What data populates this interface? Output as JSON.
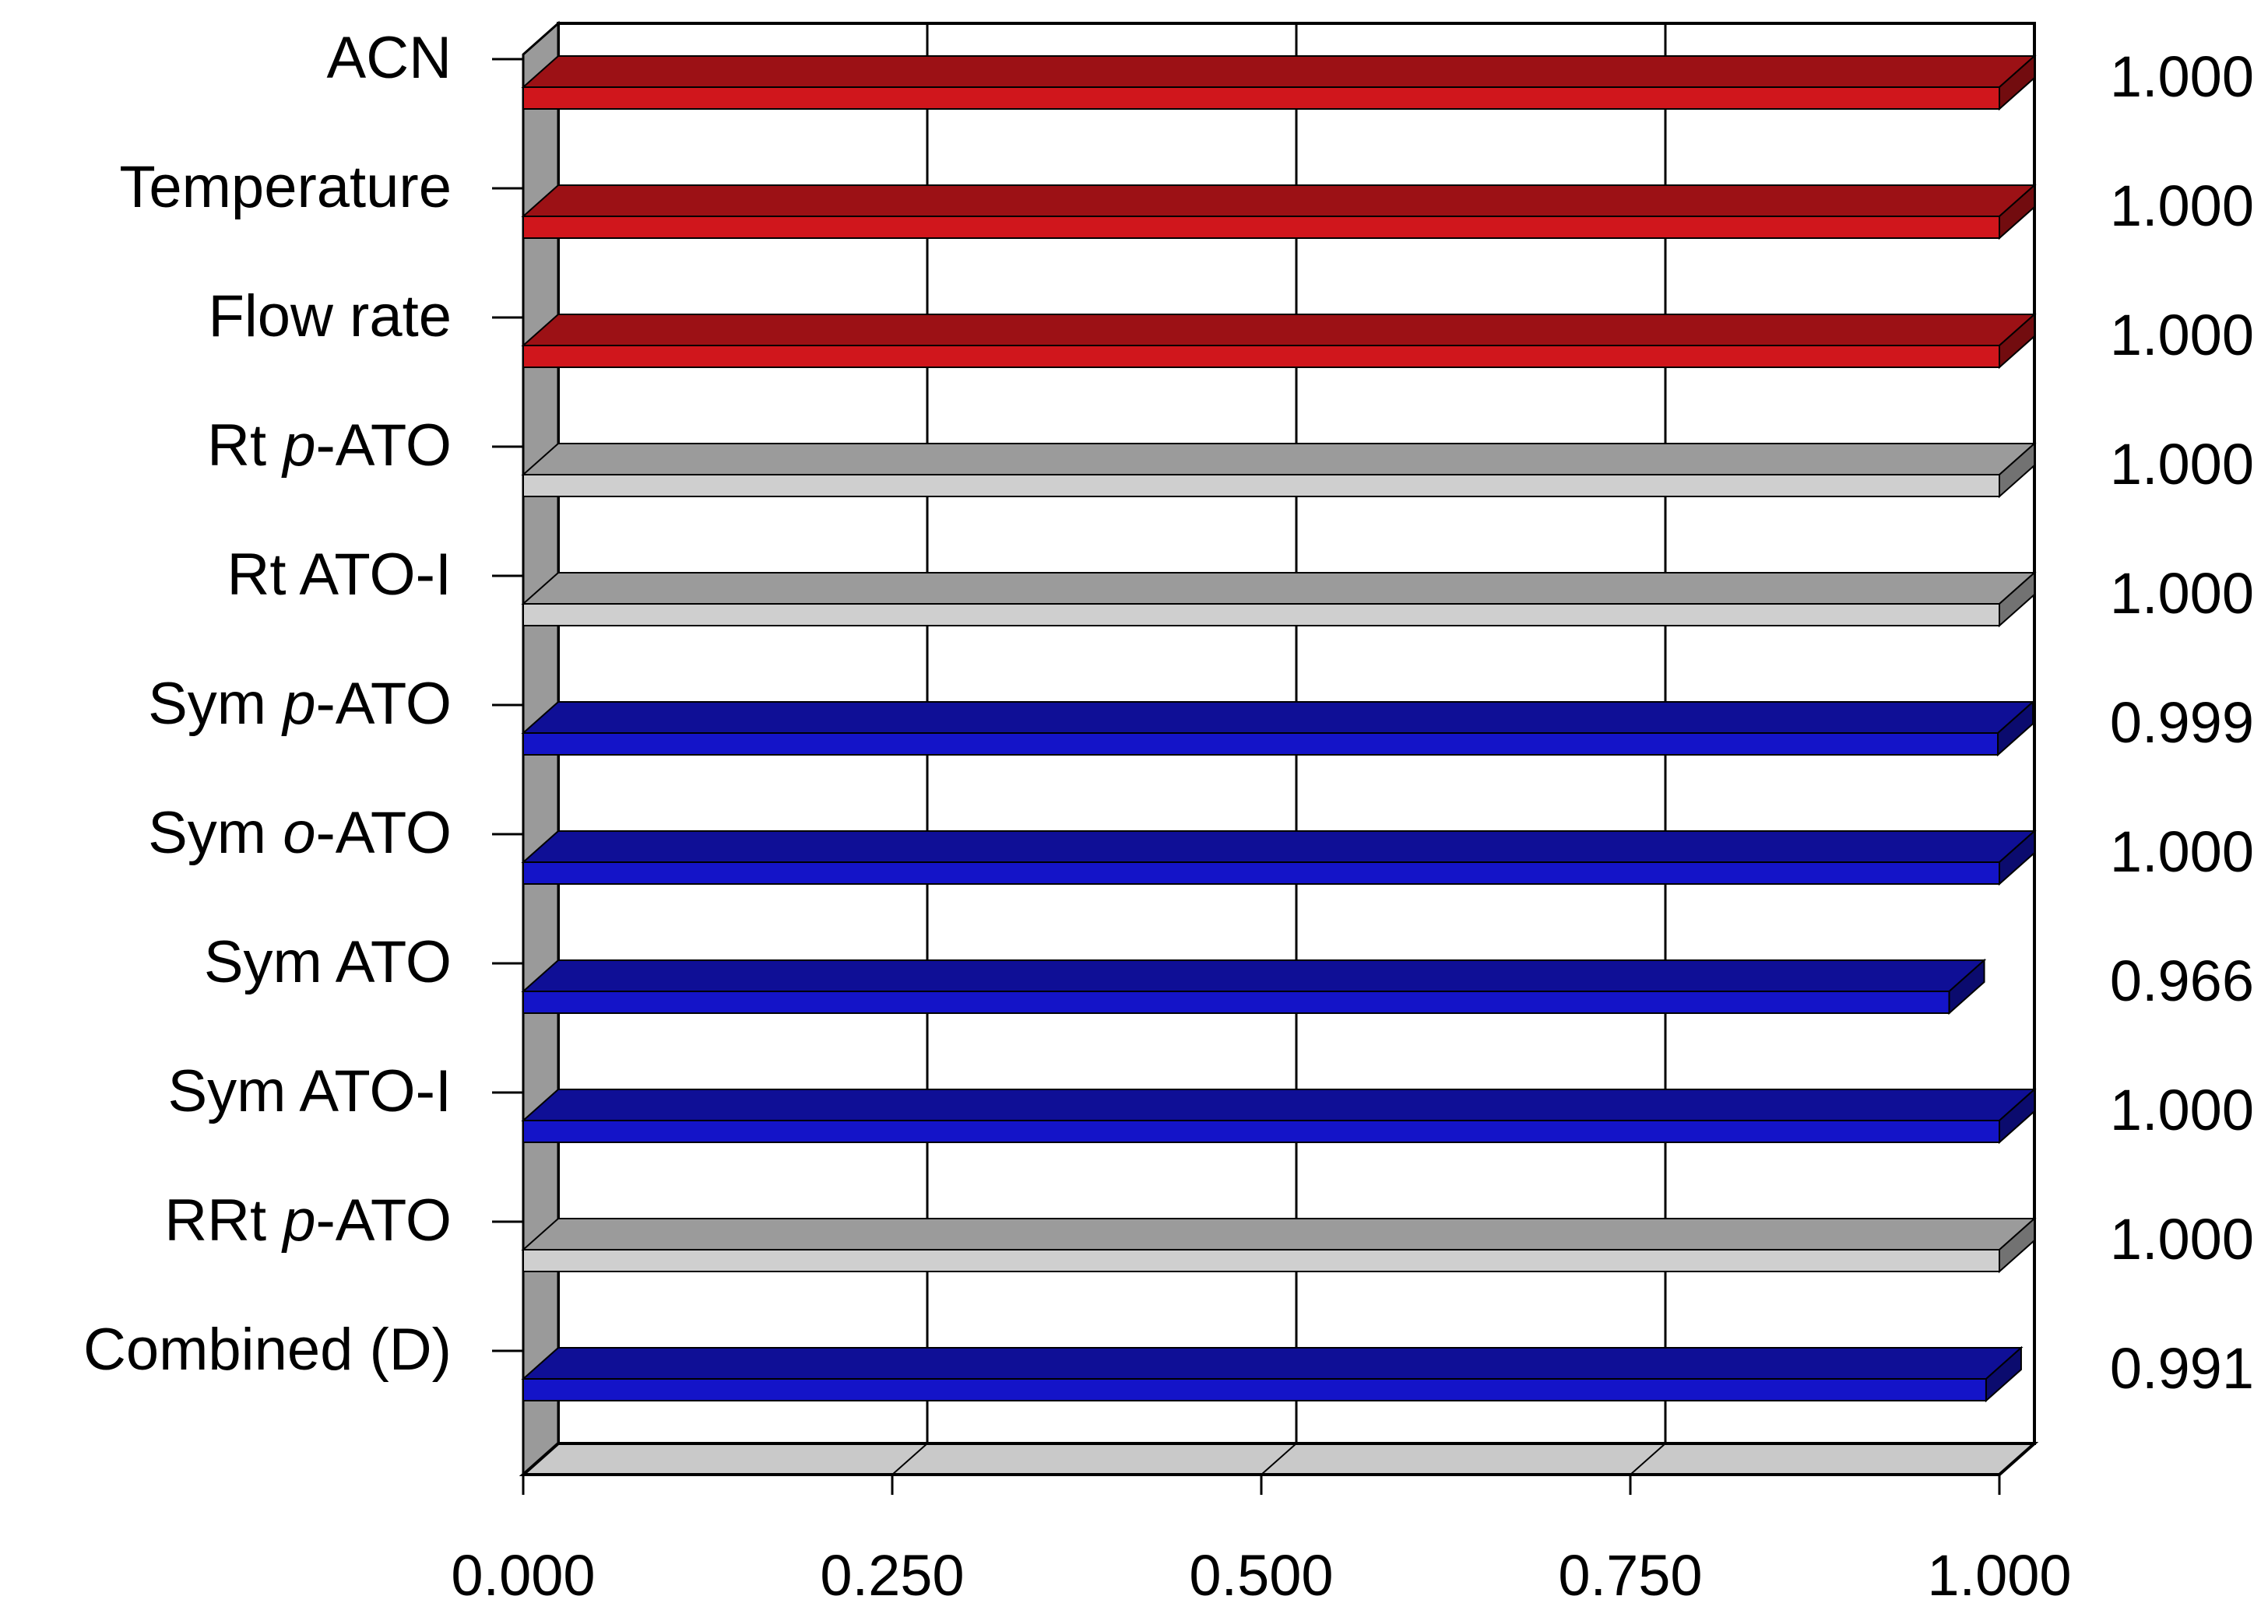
{
  "chart_data": {
    "type": "bar",
    "orientation": "horizontal",
    "title": "",
    "xlabel": "",
    "ylabel": "",
    "xlim": [
      0,
      1
    ],
    "x_ticks": [
      "0.000",
      "0.250",
      "0.500",
      "0.750",
      "1.000"
    ],
    "grid": true,
    "legend": "none",
    "bars": [
      {
        "category": "ACN",
        "cat_prefix": "ACN",
        "cat_italic": "",
        "cat_suffix": "",
        "value": 1.0,
        "label": "1.000",
        "group": "factor",
        "color": "#d0161c"
      },
      {
        "category": "Temperature",
        "cat_prefix": "Temperature",
        "cat_italic": "",
        "cat_suffix": "",
        "value": 1.0,
        "label": "1.000",
        "group": "factor",
        "color": "#d0161c"
      },
      {
        "category": "Flow rate",
        "cat_prefix": "Flow rate",
        "cat_italic": "",
        "cat_suffix": "",
        "value": 1.0,
        "label": "1.000",
        "group": "factor",
        "color": "#d0161c"
      },
      {
        "category": "Rt p-ATO",
        "cat_prefix": "Rt ",
        "cat_italic": "p",
        "cat_suffix": "-ATO",
        "value": 1.0,
        "label": "1.000",
        "group": "retention",
        "color": "#cfcfcf"
      },
      {
        "category": "Rt ATO-I",
        "cat_prefix": "Rt ATO-I",
        "cat_italic": "",
        "cat_suffix": "",
        "value": 1.0,
        "label": "1.000",
        "group": "retention",
        "color": "#cfcfcf"
      },
      {
        "category": "Sym p-ATO",
        "cat_prefix": "Sym ",
        "cat_italic": "p",
        "cat_suffix": "-ATO",
        "value": 0.999,
        "label": "0.999",
        "group": "symmetry",
        "color": "#1414c8"
      },
      {
        "category": "Sym o-ATO",
        "cat_prefix": "Sym ",
        "cat_italic": "o",
        "cat_suffix": "-ATO",
        "value": 1.0,
        "label": "1.000",
        "group": "symmetry",
        "color": "#1414c8"
      },
      {
        "category": "Sym ATO",
        "cat_prefix": "Sym ATO",
        "cat_italic": "",
        "cat_suffix": "",
        "value": 0.966,
        "label": "0.966",
        "group": "symmetry",
        "color": "#1414c8"
      },
      {
        "category": "Sym ATO-I",
        "cat_prefix": "Sym ATO-I",
        "cat_italic": "",
        "cat_suffix": "",
        "value": 1.0,
        "label": "1.000",
        "group": "symmetry",
        "color": "#1414c8"
      },
      {
        "category": "RRt p-ATO",
        "cat_prefix": "RRt ",
        "cat_italic": "p",
        "cat_suffix": "-ATO",
        "value": 1.0,
        "label": "1.000",
        "group": "retention",
        "color": "#cfcfcf"
      },
      {
        "category": "Combined (D)",
        "cat_prefix": "Combined (D)",
        "cat_italic": "",
        "cat_suffix": "",
        "value": 0.991,
        "label": "0.991",
        "group": "combined",
        "color": "#1414c8"
      }
    ]
  }
}
